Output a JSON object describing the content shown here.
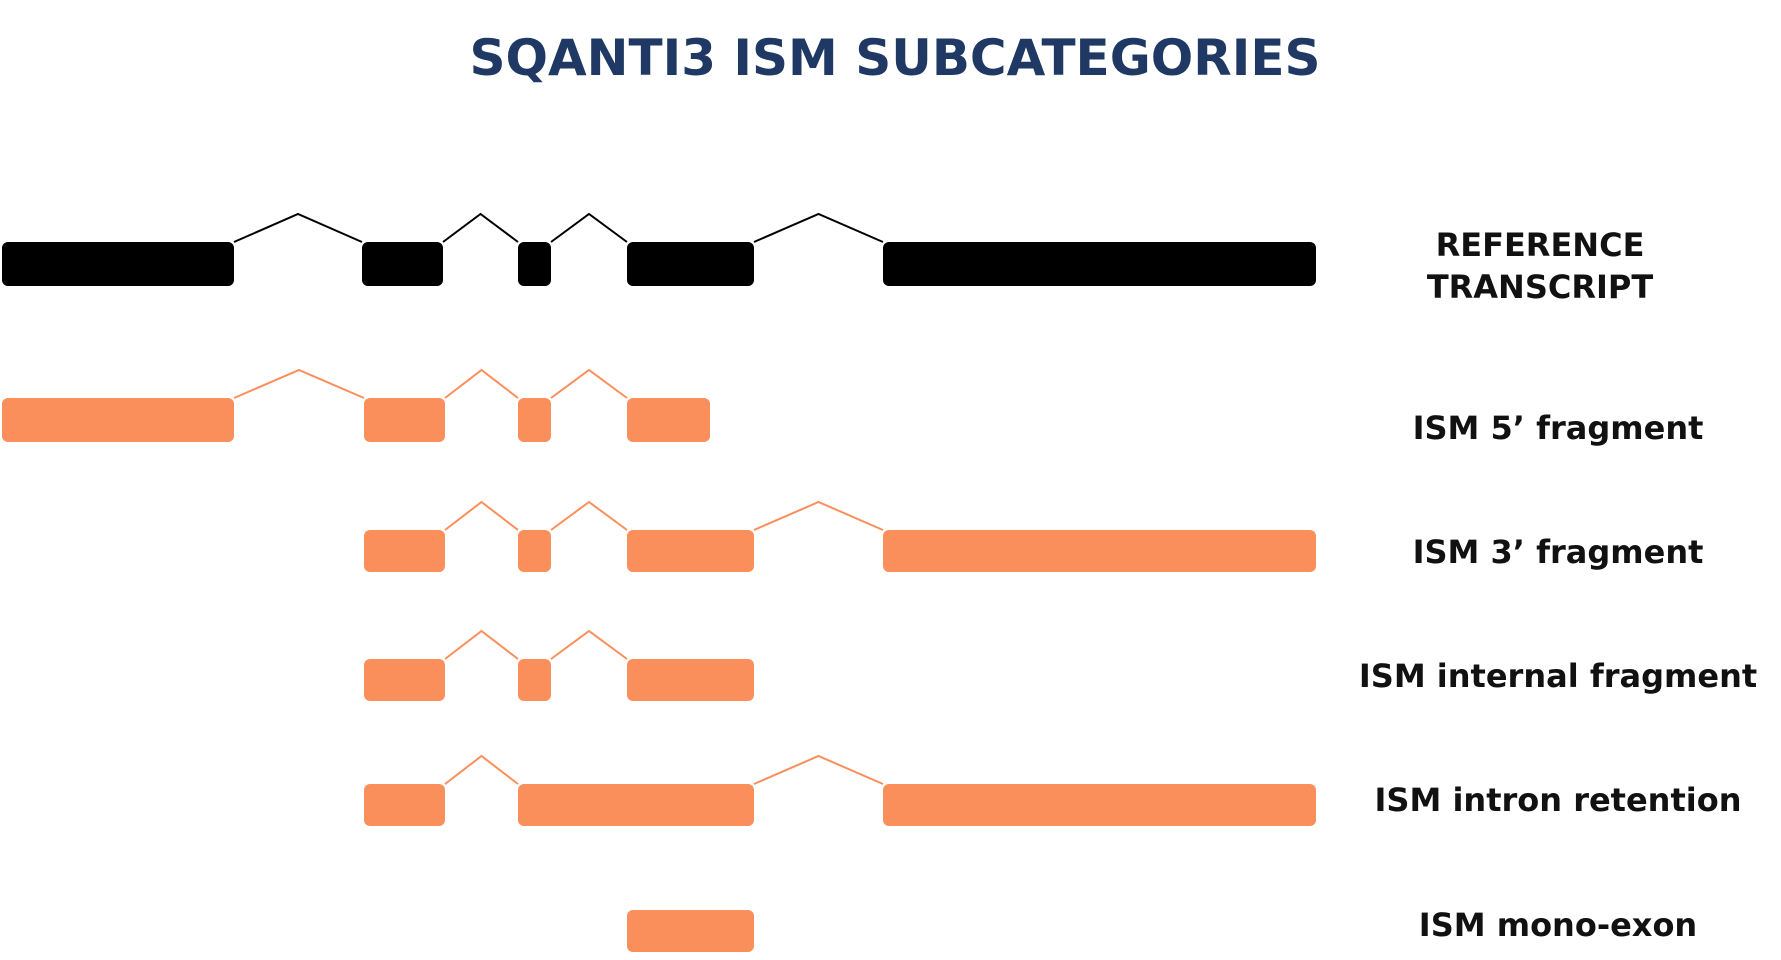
{
  "title": "SQANTI3 ISM SUBCATEGORIES",
  "colors": {
    "title": "#1f3864",
    "reference": "#000000",
    "ism": "#fb8f5b",
    "label": "#111111"
  },
  "reference": {
    "label_lines": [
      "REFERENCE",
      "TRANSCRIPT"
    ]
  },
  "rows": [
    {
      "id": "ism-5-fragment",
      "label": "ISM 5’ fragment"
    },
    {
      "id": "ism-3-fragment",
      "label": "ISM 3’ fragment"
    },
    {
      "id": "ism-internal-fragment",
      "label": "ISM internal fragment"
    },
    {
      "id": "ism-intron-retention",
      "label": "ISM intron retention"
    },
    {
      "id": "ism-mono-exon",
      "label": "ISM mono-exon"
    }
  ]
}
